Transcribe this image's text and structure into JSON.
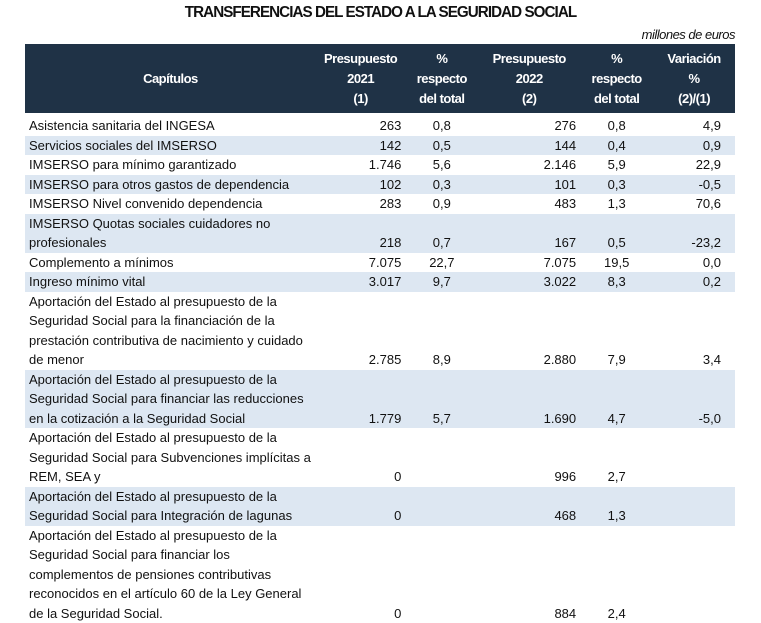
{
  "title": "TRANSFERENCIAS DEL ESTADO A LA SEGURIDAD SOCIAL",
  "units": "millones de euros",
  "headers": {
    "chapters": "Capítulos",
    "p2021": [
      "Presupuesto",
      "2021",
      "(1)"
    ],
    "pct1": [
      "%",
      "respecto",
      "del total"
    ],
    "p2022": [
      "Presupuesto",
      "2022",
      "(2)"
    ],
    "pct2": [
      "%",
      "respecto",
      "del total"
    ],
    "var": [
      "Variación",
      "%",
      "(2)/(1)"
    ]
  },
  "rows": [
    {
      "label": "Asistencia sanitaria del INGESA",
      "p2021": "263",
      "pct1": "0,8",
      "p2022": "276",
      "pct2": "0,8",
      "var": "4,9"
    },
    {
      "label": "Servicios sociales del IMSERSO",
      "p2021": "142",
      "pct1": "0,5",
      "p2022": "144",
      "pct2": "0,4",
      "var": "0,9"
    },
    {
      "label": "IMSERSO para mínimo garantizado",
      "p2021": "1.746",
      "pct1": "5,6",
      "p2022": "2.146",
      "pct2": "5,9",
      "var": "22,9"
    },
    {
      "label": "IMSERSO para otros gastos de dependencia",
      "p2021": "102",
      "pct1": "0,3",
      "p2022": "101",
      "pct2": "0,3",
      "var": "-0,5"
    },
    {
      "label": "IMSERSO Nivel convenido dependencia",
      "p2021": "283",
      "pct1": "0,9",
      "p2022": "483",
      "pct2": "1,3",
      "var": "70,6"
    },
    {
      "label": "IMSERSO Quotas sociales cuidadores no profesionales",
      "p2021": "218",
      "pct1": "0,7",
      "p2022": "167",
      "pct2": "0,5",
      "var": "-23,2"
    },
    {
      "label": "Complemento a mínimos",
      "p2021": "7.075",
      "pct1": "22,7",
      "p2022": "7.075",
      "pct2": "19,5",
      "var": "0,0"
    },
    {
      "label": "Ingreso mínimo vital",
      "p2021": "3.017",
      "pct1": "9,7",
      "p2022": "3.022",
      "pct2": "8,3",
      "var": "0,2"
    },
    {
      "label": "Aportación del Estado al presupuesto de la Seguridad Social para la financiación de la prestación contributiva de nacimiento y cuidado de menor",
      "p2021": "2.785",
      "pct1": "8,9",
      "p2022": "2.880",
      "pct2": "7,9",
      "var": "3,4"
    },
    {
      "label": "Aportación del Estado al presupuesto de la Seguridad Social para financiar las reducciones en la cotización a la Seguridad Social",
      "p2021": "1.779",
      "pct1": "5,7",
      "p2022": "1.690",
      "pct2": "4,7",
      "var": "-5,0"
    },
    {
      "label": "Aportación del Estado al presupuesto de la Seguridad Social para Subvenciones implícitas a REM, SEA y",
      "p2021": "0",
      "pct1": "",
      "p2022": "996",
      "pct2": "2,7",
      "var": ""
    },
    {
      "label": "Aportación del Estado al presupuesto de la Seguridad Social para Integración de lagunas",
      "p2021": "0",
      "pct1": "",
      "p2022": "468",
      "pct2": "1,3",
      "var": ""
    },
    {
      "label": "Aportación del Estado al presupuesto de la Seguridad Social para financiar los complementos de pensiones contributivas reconocidos en el artículo 60 de la Ley General de la Seguridad Social.",
      "p2021": "0",
      "pct1": "",
      "p2022": "884",
      "pct2": "2,4",
      "var": ""
    }
  ]
}
